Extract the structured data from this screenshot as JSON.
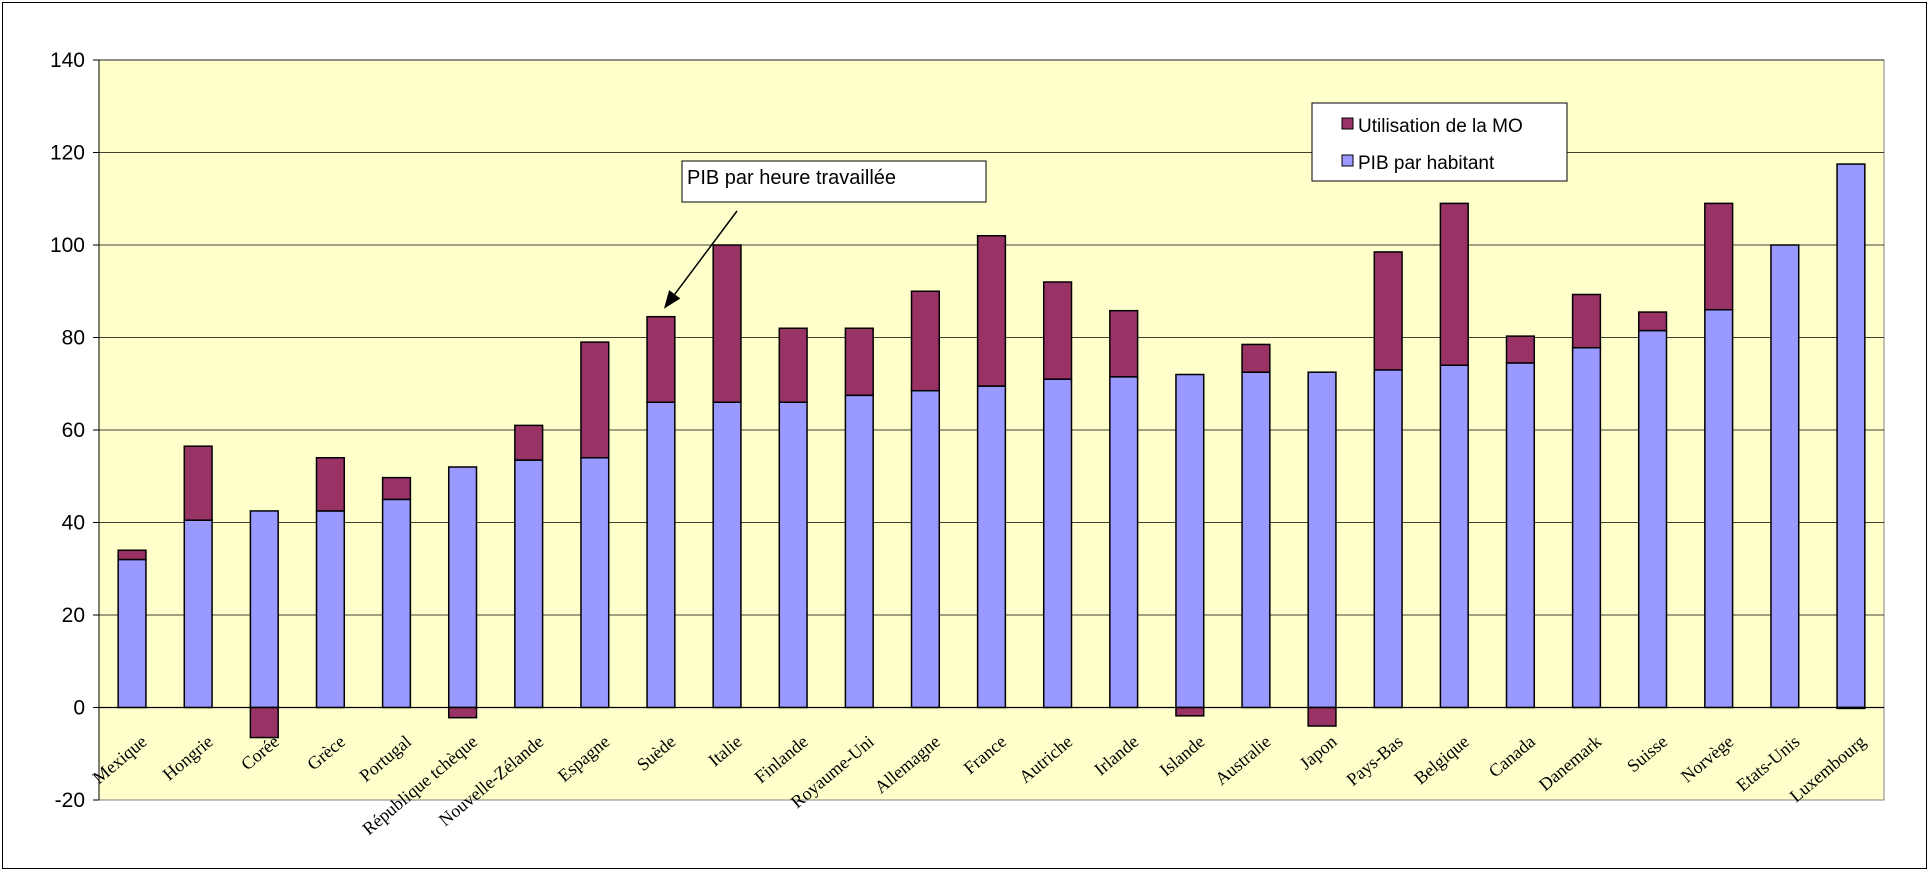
{
  "chart_data": {
    "type": "bar",
    "stacked": true,
    "categories": [
      "Mexique",
      "Hongrie",
      "Corée",
      "Grèce",
      "Portugal",
      "République tchèque",
      "Nouvelle-Zélande",
      "Espagne",
      "Suède",
      "Italie",
      "Finlande",
      "Royaume-Uni",
      "Allemagne",
      "France",
      "Autriche",
      "Irlande",
      "Islande",
      "Australie",
      "Japon",
      "Pays-Bas",
      "Belgique",
      "Canada",
      "Danemark",
      "Suisse",
      "Norvège",
      "Etats-Unis",
      "Luxembourg"
    ],
    "series": [
      {
        "name": "PIB par habitant",
        "color": "#9999ff",
        "values": [
          32,
          40.5,
          42.5,
          42.5,
          45,
          52,
          53.5,
          54,
          66,
          66,
          66,
          67.5,
          68.5,
          69.5,
          71,
          71.5,
          72,
          72.5,
          72.5,
          73,
          74,
          74.5,
          77.8,
          81.5,
          86,
          100,
          117.5
        ]
      },
      {
        "name": "Utilisation de la MO",
        "color": "#993366",
        "values": [
          2,
          16,
          -6.5,
          11.5,
          4.7,
          -2.2,
          7.5,
          25,
          18.5,
          34,
          16,
          14.5,
          21.5,
          32.5,
          21,
          14.3,
          -1.8,
          6,
          -4,
          25.5,
          35,
          5.8,
          11.5,
          4,
          23,
          0,
          -0.2
        ]
      }
    ],
    "ylim": [
      -20,
      140
    ],
    "yticks": [
      -20,
      0,
      20,
      40,
      60,
      80,
      100,
      120,
      140
    ],
    "grid": true,
    "background": "#ffffcc",
    "legend_position": "top-right",
    "annotation": {
      "text": "PIB par heure travaillée",
      "target_category": "Suède"
    }
  }
}
